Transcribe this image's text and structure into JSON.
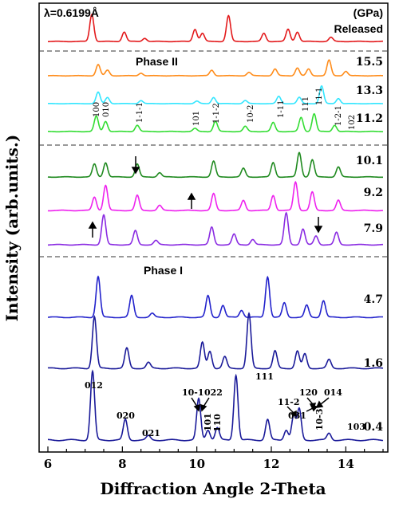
{
  "chart_data": {
    "type": "line",
    "xlabel": "Diffraction Angle 2-Theta",
    "ylabel": "Intensity (arb.units.)",
    "xlim": [
      6,
      15
    ],
    "x_ticks": [
      6,
      8,
      10,
      12,
      14
    ],
    "wavelength_label": "λ=0.6199Å",
    "pressure_unit_label": "(GPa)",
    "grid": false,
    "series": [
      {
        "name": "Released",
        "color": "#e31a1c",
        "peaks": [
          [
            7.18,
            1.0
          ],
          [
            8.05,
            0.35
          ],
          [
            8.6,
            0.12
          ],
          [
            9.95,
            0.45
          ],
          [
            10.15,
            0.3
          ],
          [
            10.85,
            0.95
          ],
          [
            11.8,
            0.3
          ],
          [
            12.45,
            0.45
          ],
          [
            12.7,
            0.35
          ],
          [
            13.6,
            0.15
          ]
        ]
      },
      {
        "name": "15.5",
        "color": "#ff8c1a",
        "peaks": [
          [
            7.35,
            0.5
          ],
          [
            7.6,
            0.25
          ],
          [
            8.5,
            0.12
          ],
          [
            10.4,
            0.25
          ],
          [
            11.4,
            0.15
          ],
          [
            12.1,
            0.3
          ],
          [
            12.7,
            0.35
          ],
          [
            13.0,
            0.3
          ],
          [
            13.55,
            0.7
          ],
          [
            14.0,
            0.2
          ]
        ]
      },
      {
        "name": "13.3",
        "color": "#33e6ff",
        "peaks": [
          [
            7.35,
            0.55
          ],
          [
            7.6,
            0.3
          ],
          [
            8.5,
            0.15
          ],
          [
            10.0,
            0.12
          ],
          [
            10.45,
            0.3
          ],
          [
            11.3,
            0.15
          ],
          [
            12.2,
            0.35
          ],
          [
            12.75,
            0.3
          ],
          [
            13.35,
            0.85
          ],
          [
            13.8,
            0.25
          ]
        ]
      },
      {
        "name": "11.2",
        "color": "#33dd33",
        "peaks": [
          [
            7.3,
            0.6
          ],
          [
            7.55,
            0.4
          ],
          [
            8.4,
            0.25
          ],
          [
            9.95,
            0.12
          ],
          [
            10.5,
            0.4
          ],
          [
            11.3,
            0.2
          ],
          [
            12.05,
            0.35
          ],
          [
            12.8,
            0.55
          ],
          [
            13.15,
            0.7
          ],
          [
            13.7,
            0.25
          ]
        ]
      },
      {
        "name": "10.1",
        "color": "#1f8a1f",
        "peaks": [
          [
            7.25,
            0.45
          ],
          [
            7.55,
            0.5
          ],
          [
            8.4,
            0.45
          ],
          [
            9.0,
            0.15
          ],
          [
            10.45,
            0.55
          ],
          [
            11.25,
            0.3
          ],
          [
            12.05,
            0.5
          ],
          [
            12.75,
            0.85
          ],
          [
            13.1,
            0.6
          ],
          [
            13.8,
            0.35
          ]
        ]
      },
      {
        "name": "9.2",
        "color": "#ee22ee",
        "peaks": [
          [
            7.25,
            0.4
          ],
          [
            7.55,
            0.75
          ],
          [
            8.4,
            0.45
          ],
          [
            9.0,
            0.15
          ],
          [
            10.45,
            0.5
          ],
          [
            11.25,
            0.3
          ],
          [
            12.05,
            0.45
          ],
          [
            12.65,
            0.85
          ],
          [
            13.1,
            0.55
          ],
          [
            13.8,
            0.3
          ]
        ]
      },
      {
        "name": "7.9",
        "color": "#8a2be2",
        "peaks": [
          [
            7.5,
            0.85
          ],
          [
            8.35,
            0.4
          ],
          [
            8.9,
            0.12
          ],
          [
            10.4,
            0.5
          ],
          [
            11.0,
            0.3
          ],
          [
            11.5,
            0.15
          ],
          [
            12.4,
            0.9
          ],
          [
            12.85,
            0.45
          ],
          [
            13.2,
            0.25
          ],
          [
            13.75,
            0.35
          ]
        ]
      },
      {
        "name": "4.7",
        "color": "#2222cc",
        "peaks": [
          [
            7.35,
            0.85
          ],
          [
            8.25,
            0.45
          ],
          [
            8.8,
            0.08
          ],
          [
            10.3,
            0.45
          ],
          [
            10.7,
            0.25
          ],
          [
            11.2,
            0.15
          ],
          [
            11.9,
            0.85
          ],
          [
            12.35,
            0.3
          ],
          [
            12.95,
            0.25
          ],
          [
            13.4,
            0.35
          ]
        ]
      },
      {
        "name": "1.6",
        "color": "#1a1a99",
        "peaks": [
          [
            7.25,
            0.9
          ],
          [
            8.12,
            0.35
          ],
          [
            8.7,
            0.1
          ],
          [
            10.15,
            0.45
          ],
          [
            10.35,
            0.3
          ],
          [
            10.75,
            0.2
          ],
          [
            11.4,
            0.95
          ],
          [
            12.1,
            0.3
          ],
          [
            12.7,
            0.3
          ],
          [
            12.9,
            0.25
          ],
          [
            13.55,
            0.15
          ]
        ]
      },
      {
        "name": "0.4",
        "color": "#1a1a99",
        "peaks": [
          [
            7.2,
            1.0
          ],
          [
            8.08,
            0.3
          ],
          [
            8.7,
            0.06
          ],
          [
            10.05,
            0.6
          ],
          [
            10.3,
            0.15
          ],
          [
            10.55,
            0.18
          ],
          [
            11.05,
            0.95
          ],
          [
            11.9,
            0.3
          ],
          [
            12.4,
            0.15
          ],
          [
            12.6,
            0.35
          ],
          [
            12.75,
            0.45
          ],
          [
            13.55,
            0.1
          ]
        ]
      }
    ],
    "phase_labels": [
      "Phase II",
      "Phase I"
    ],
    "peak_labels_phase2": [
      "100",
      "010",
      "1-1-1",
      "101",
      "1-1-2",
      "10-2",
      "1-11",
      "111",
      "11-1",
      "1-2-1",
      "102"
    ],
    "peak_labels_phase1": [
      "012",
      "020",
      "021",
      "10-1",
      "022",
      "101",
      "110",
      "111",
      "11-2",
      "031",
      "120",
      "014",
      "10-3",
      "103"
    ]
  }
}
